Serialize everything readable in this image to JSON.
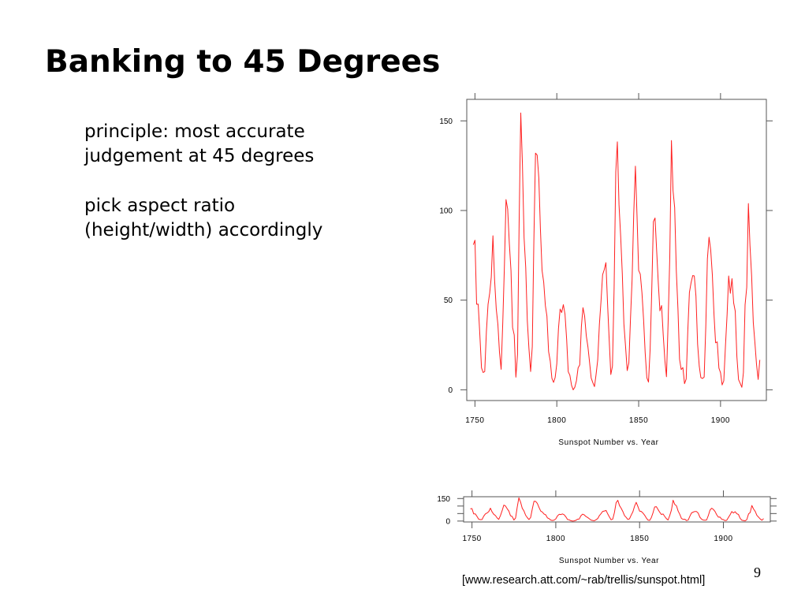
{
  "slide": {
    "title": "Banking to 45 Degrees",
    "bullets": [
      {
        "lines": [
          "principle: most accurate",
          "judgement at 45 degrees"
        ]
      },
      {
        "lines": [
          "pick aspect ratio",
          "(height/width) accordingly"
        ]
      }
    ],
    "citation": "[www.research.att.com/~rab/trellis/sunspot.html]",
    "page_number": "9"
  },
  "colors": {
    "line": "#ff2020",
    "frame": "#555555",
    "text": "#000000"
  },
  "chart_data": [
    {
      "type": "line",
      "title": "",
      "xlabel": "Sunspot Number vs. Year",
      "ylabel": "",
      "xlim": [
        1745,
        1928
      ],
      "ylim": [
        -6,
        162
      ],
      "xticks": [
        1750,
        1800,
        1850,
        1900
      ],
      "yticks": [
        0,
        50,
        100,
        150
      ],
      "grid": false,
      "legend": "none",
      "series": [
        {
          "x": [
            1749,
            1750,
            1751,
            1752,
            1753,
            1754,
            1755,
            1756,
            1757,
            1758,
            1759,
            1760,
            1761,
            1762,
            1763,
            1764,
            1765,
            1766,
            1767,
            1768,
            1769,
            1770,
            1771,
            1772,
            1773,
            1774,
            1775,
            1776,
            1777,
            1778,
            1779,
            1780,
            1781,
            1782,
            1783,
            1784,
            1785,
            1786,
            1787,
            1788,
            1789,
            1790,
            1791,
            1792,
            1793,
            1794,
            1795,
            1796,
            1797,
            1798,
            1799,
            1800,
            1801,
            1802,
            1803,
            1804,
            1805,
            1806,
            1807,
            1808,
            1809,
            1810,
            1811,
            1812,
            1813,
            1814,
            1815,
            1816,
            1817,
            1818,
            1819,
            1820,
            1821,
            1822,
            1823,
            1824,
            1825,
            1826,
            1827,
            1828,
            1829,
            1830,
            1831,
            1832,
            1833,
            1834,
            1835,
            1836,
            1837,
            1838,
            1839,
            1840,
            1841,
            1842,
            1843,
            1844,
            1845,
            1846,
            1847,
            1848,
            1849,
            1850,
            1851,
            1852,
            1853,
            1854,
            1855,
            1856,
            1857,
            1858,
            1859,
            1860,
            1861,
            1862,
            1863,
            1864,
            1865,
            1866,
            1867,
            1868,
            1869,
            1870,
            1871,
            1872,
            1873,
            1874,
            1875,
            1876,
            1877,
            1878,
            1879,
            1880,
            1881,
            1882,
            1883,
            1884,
            1885,
            1886,
            1887,
            1888,
            1889,
            1890,
            1891,
            1892,
            1893,
            1894,
            1895,
            1896,
            1897,
            1898,
            1899,
            1900,
            1901,
            1902,
            1903,
            1904,
            1905,
            1906,
            1907,
            1908,
            1909,
            1910,
            1911,
            1912,
            1913,
            1914,
            1915,
            1916,
            1917,
            1918,
            1919,
            1920,
            1921,
            1922,
            1923,
            1924
          ],
          "y": [
            80.9,
            83.4,
            47.7,
            47.8,
            30.7,
            12.2,
            9.6,
            10.2,
            32.4,
            47.6,
            54.0,
            62.9,
            85.9,
            61.2,
            45.1,
            36.4,
            20.9,
            11.4,
            37.8,
            69.8,
            106.1,
            100.8,
            81.6,
            66.5,
            34.8,
            30.6,
            7.0,
            19.8,
            92.5,
            154.4,
            125.9,
            84.8,
            68.1,
            38.5,
            22.8,
            10.2,
            24.1,
            82.9,
            132.0,
            130.9,
            118.1,
            89.9,
            66.6,
            60.0,
            46.9,
            41.0,
            21.3,
            16.0,
            6.4,
            4.1,
            6.8,
            14.5,
            34.0,
            45.0,
            43.1,
            47.5,
            42.2,
            28.1,
            10.1,
            8.1,
            2.5,
            0.0,
            1.4,
            5.0,
            12.2,
            13.9,
            35.4,
            45.8,
            41.1,
            30.1,
            23.9,
            15.6,
            6.6,
            4.0,
            1.8,
            8.5,
            16.6,
            36.3,
            49.6,
            64.2,
            67.0,
            70.9,
            47.8,
            27.5,
            8.5,
            13.2,
            56.9,
            121.5,
            138.3,
            103.2,
            85.7,
            64.6,
            36.7,
            24.2,
            10.7,
            15.0,
            40.1,
            61.5,
            98.5,
            124.7,
            96.3,
            66.6,
            64.5,
            54.1,
            39.0,
            20.6,
            6.7,
            4.3,
            22.7,
            54.8,
            93.8,
            95.8,
            77.2,
            59.1,
            44.0,
            47.0,
            30.5,
            16.3,
            7.3,
            37.6,
            74.0,
            139.0,
            111.2,
            101.6,
            66.2,
            44.7,
            17.0,
            11.3,
            12.4,
            3.4,
            6.0,
            32.3,
            54.3,
            59.7,
            63.7,
            63.5,
            52.2,
            25.4,
            13.1,
            6.8,
            6.3,
            7.1,
            35.6,
            73.0,
            85.1,
            78.0,
            64.0,
            41.8,
            26.2,
            26.7,
            12.1,
            9.5,
            2.7,
            5.0,
            24.4,
            42.0,
            63.5,
            53.8,
            62.0,
            48.5,
            43.9,
            18.6,
            5.7,
            3.6,
            1.4,
            9.6,
            47.4,
            57.1,
            103.9,
            80.6,
            63.6,
            37.6,
            26.1,
            14.2,
            5.8,
            16.7
          ]
        }
      ]
    }
  ]
}
